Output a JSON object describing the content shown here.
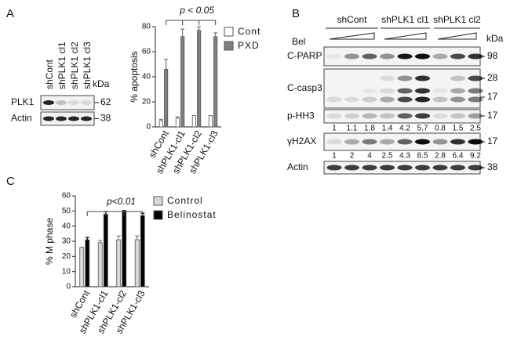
{
  "panel_labels": [
    "A",
    "B",
    "C"
  ],
  "chart_data": [
    {
      "type": "bar",
      "y_label": "% apoptosis",
      "annotation": "p < 0.05",
      "categories": [
        "shCont",
        "shPLK1-cl1",
        "shPLK1-cl2",
        "shPLK1-cl3"
      ],
      "series": [
        {
          "name": "Cont",
          "color": "#ffffff",
          "values": [
            5,
            7,
            9,
            9
          ],
          "errors": [
            1,
            1,
            0,
            0
          ]
        },
        {
          "name": "PXD",
          "color": "#808080",
          "values": [
            46,
            72,
            77,
            72
          ],
          "errors": [
            8,
            6,
            3,
            3
          ]
        }
      ],
      "ylim": [
        0,
        80
      ],
      "yticks": [
        0,
        20,
        40,
        60,
        80
      ]
    },
    {
      "type": "bar",
      "y_label": "% M phase",
      "annotation": "p<0.01",
      "categories": [
        "shCont",
        "shPLK1-cl1",
        "shPLK1-cl2",
        "shPLK1-cl3"
      ],
      "series": [
        {
          "name": "Control",
          "color": "#d9d9d9",
          "values": [
            26,
            29,
            31,
            31
          ],
          "errors": [
            0,
            1.5,
            2.5,
            2.5
          ]
        },
        {
          "name": "Belinostat",
          "color": "#000000",
          "values": [
            31,
            48,
            49.5,
            47
          ],
          "errors": [
            1.5,
            1.5,
            0.8,
            1.5
          ]
        }
      ],
      "ylim": [
        0,
        60
      ],
      "yticks": [
        0,
        10,
        20,
        30,
        40,
        50,
        60
      ]
    }
  ],
  "blot_a": {
    "lanes": [
      "shCont",
      "shPLK1 cl1",
      "shPLK1 cl2",
      "shPLK1 cl3"
    ],
    "kda": "kDa",
    "rows": [
      {
        "name": "PLK1",
        "markers": [
          "62"
        ]
      },
      {
        "name": "Actin",
        "markers": [
          "38"
        ]
      }
    ]
  },
  "blot_b": {
    "groups": [
      "shCont",
      "shPLK1 cl1",
      "shPLK1 cl2"
    ],
    "treatment": "Bel",
    "kda": "kDa",
    "rows": [
      {
        "name": "C-PARP",
        "markers": [
          "98"
        ]
      },
      {
        "name": "C-casp3",
        "markers": [
          "28",
          "17"
        ]
      },
      {
        "name": "p-HH3",
        "markers": [
          "17"
        ],
        "quantification": [
          1,
          1.1,
          1.8,
          1.4,
          4.2,
          5.7,
          0.8,
          1.5,
          2.5
        ]
      },
      {
        "name": "γH2AX",
        "markers": [
          "17"
        ],
        "quantification": [
          1,
          2,
          4,
          2.5,
          4.3,
          8.5,
          2.8,
          6.4,
          9.2
        ]
      },
      {
        "name": "Actin",
        "markers": [
          "38"
        ]
      }
    ]
  }
}
